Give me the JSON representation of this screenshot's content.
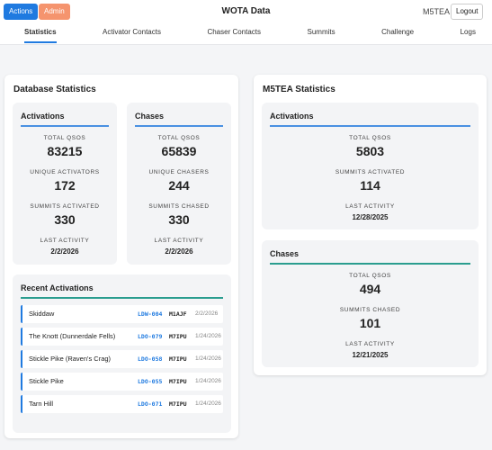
{
  "header": {
    "buttons": [
      "Actions",
      "Admin"
    ],
    "title": "WOTA Data",
    "user": "M5TEA",
    "logout": "Logout"
  },
  "nav": [
    "Statistics",
    "Activator Contacts",
    "Chaser Contacts",
    "Summits",
    "Challenge",
    "Logs"
  ],
  "database_statistics": {
    "title": "Database Statistics",
    "activations": {
      "title": "Activations",
      "stats": [
        {
          "label": "TOTAL QSOS",
          "value": 83215
        },
        {
          "label": "UNIQUE ACTIVATORS",
          "value": 172
        },
        {
          "label": "SUMMITS ACTIVATED",
          "value": 330
        },
        {
          "label": "LAST ACTIVITY",
          "value": "2/2/2026"
        }
      ]
    },
    "chases": {
      "title": "Chases",
      "stats": [
        {
          "label": "TOTAL QSOS",
          "value": 65839
        },
        {
          "label": "UNIQUE CHASERS",
          "value": 244
        },
        {
          "label": "SUMMITS CHASED",
          "value": 330
        },
        {
          "label": "LAST ACTIVITY",
          "value": "2/2/2026"
        }
      ]
    }
  },
  "recent_activations": {
    "title": "Recent Activations",
    "rows": [
      {
        "summit": "Skiddaw",
        "ref": "LDW-004",
        "call": "M1AJF",
        "date": "2/2/2026"
      },
      {
        "summit": "The Knott (Dunnerdale Fells)",
        "ref": "LDO-079",
        "call": "M7IPU",
        "date": "1/24/2026"
      },
      {
        "summit": "Stickle Pike (Raven's Crag)",
        "ref": "LDO-058",
        "call": "M7IPU",
        "date": "1/24/2026"
      },
      {
        "summit": "Stickle Pike",
        "ref": "LDO-055",
        "call": "M7IPU",
        "date": "1/24/2026"
      },
      {
        "summit": "Tarn Hill",
        "ref": "LDO-071",
        "call": "M7IPU",
        "date": "1/24/2026"
      }
    ]
  },
  "user_statistics": {
    "title": "M5TEA Statistics",
    "activations": {
      "title": "Activations",
      "stats": [
        {
          "label": "TOTAL QSOS",
          "value": 5803
        },
        {
          "label": "SUMMITS ACTIVATED",
          "value": 114
        },
        {
          "label": "LAST ACTIVITY",
          "value": "12/28/2025"
        }
      ]
    },
    "chases": {
      "title": "Chases",
      "stats": [
        {
          "label": "TOTAL QSOS",
          "value": 494
        },
        {
          "label": "SUMMITS CHASED",
          "value": 101
        },
        {
          "label": "LAST ACTIVITY",
          "value": "12/21/2025"
        }
      ]
    }
  }
}
